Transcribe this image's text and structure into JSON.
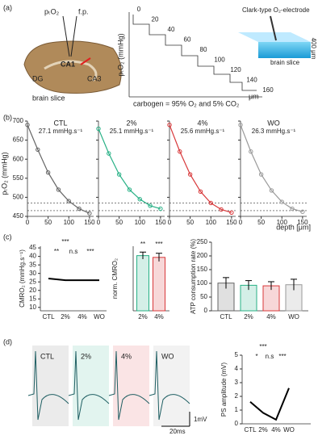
{
  "a": {
    "label": "(a)",
    "probe": "pₜO₂",
    "fp": "f.p.",
    "regions": [
      "CA1",
      "DG",
      "CA3"
    ],
    "slice": "brain slice",
    "steps": {
      "depths": [
        0,
        20,
        40,
        60,
        80,
        100,
        120,
        140,
        160
      ],
      "ylabel": "pₜO₂ (mmHg)",
      "unit": "μm",
      "note": "carbogen = 95% O₂ and 5% CO₂"
    },
    "electrode": "Clark-type O₂-electrode",
    "thickness": "400 μm",
    "slice2": "brain slice"
  },
  "b": {
    "label": "(b)",
    "ylabel": "pₜO₂ (mmHg)",
    "xlabel": "depth [μm]",
    "ylim": [
      450,
      700
    ],
    "yticks": [
      450,
      500,
      550,
      600,
      650,
      700
    ],
    "xlim": [
      0,
      160
    ],
    "xticks": [
      0,
      50,
      100,
      150
    ],
    "x": [
      0,
      25,
      50,
      75,
      100,
      125,
      150
    ],
    "reference_lines": [
      465,
      485
    ],
    "plots": [
      {
        "name": "CTL",
        "rate": "27.1 mmHg.s⁻¹",
        "color": "#666666",
        "values": [
          690,
          625,
          565,
          520,
          490,
          470,
          458
        ]
      },
      {
        "name": "2%",
        "rate": "25.1 mmHg.s⁻¹",
        "color": "#27b085",
        "values": [
          680,
          615,
          560,
          520,
          495,
          478,
          470
        ]
      },
      {
        "name": "4%",
        "rate": "25.6 mmHg.s⁻¹",
        "color": "#d8383a",
        "values": [
          690,
          620,
          560,
          515,
          485,
          468,
          460
        ]
      },
      {
        "name": "WO",
        "rate": "26.3 mmHg.s⁻¹",
        "color": "#9a9a9a",
        "values": [
          690,
          620,
          560,
          518,
          488,
          470,
          462
        ]
      }
    ]
  },
  "c": {
    "label": "(c)",
    "cmro2": {
      "ylabel": "CMRO₂ (mmHg.s⁻¹)",
      "ylim": [
        8,
        46
      ],
      "yticks": [
        10,
        15,
        20,
        25,
        30,
        35,
        40,
        45
      ],
      "categories": [
        "CTL",
        "2%",
        "4%",
        "WO"
      ],
      "means": [
        27,
        26,
        26,
        26
      ],
      "stars": [
        "***",
        "**",
        "n.s",
        "***"
      ]
    },
    "norm": {
      "ylabel": "norm. CMRO₂",
      "ylim": [
        0,
        110
      ],
      "categories": [
        "2%",
        "4%"
      ],
      "values": [
        94,
        91
      ],
      "errors": [
        6,
        7
      ],
      "stars": [
        "**",
        "***"
      ]
    },
    "atp": {
      "ylabel": "ATP consumption rate (%)",
      "ylim": [
        0,
        250
      ],
      "yticks": [
        0,
        50,
        100,
        150,
        200,
        250
      ],
      "categories": [
        "CTL",
        "2%",
        "4%",
        "WO"
      ],
      "values": [
        101,
        93,
        91,
        95
      ],
      "errors": [
        20,
        17,
        15,
        20
      ]
    }
  },
  "d": {
    "label": "(d)",
    "traces": [
      "CTL",
      "2%",
      "4%",
      "WO"
    ],
    "scale_y": "1mV",
    "scale_x": "20ms",
    "ps": {
      "ylabel": "PS amplitude (mV)",
      "ylim": [
        0,
        5
      ],
      "yticks": [
        0,
        1,
        2,
        3,
        4,
        5
      ],
      "categories": [
        "CTL",
        "2%",
        "4%",
        "WO"
      ],
      "means": [
        1.6,
        0.8,
        0.3,
        2.6
      ],
      "stars": [
        "***",
        "*",
        "n.s",
        "***"
      ]
    }
  },
  "colors": [
    "#666666",
    "#27b085",
    "#d8383a",
    "#9a9a9a"
  ]
}
